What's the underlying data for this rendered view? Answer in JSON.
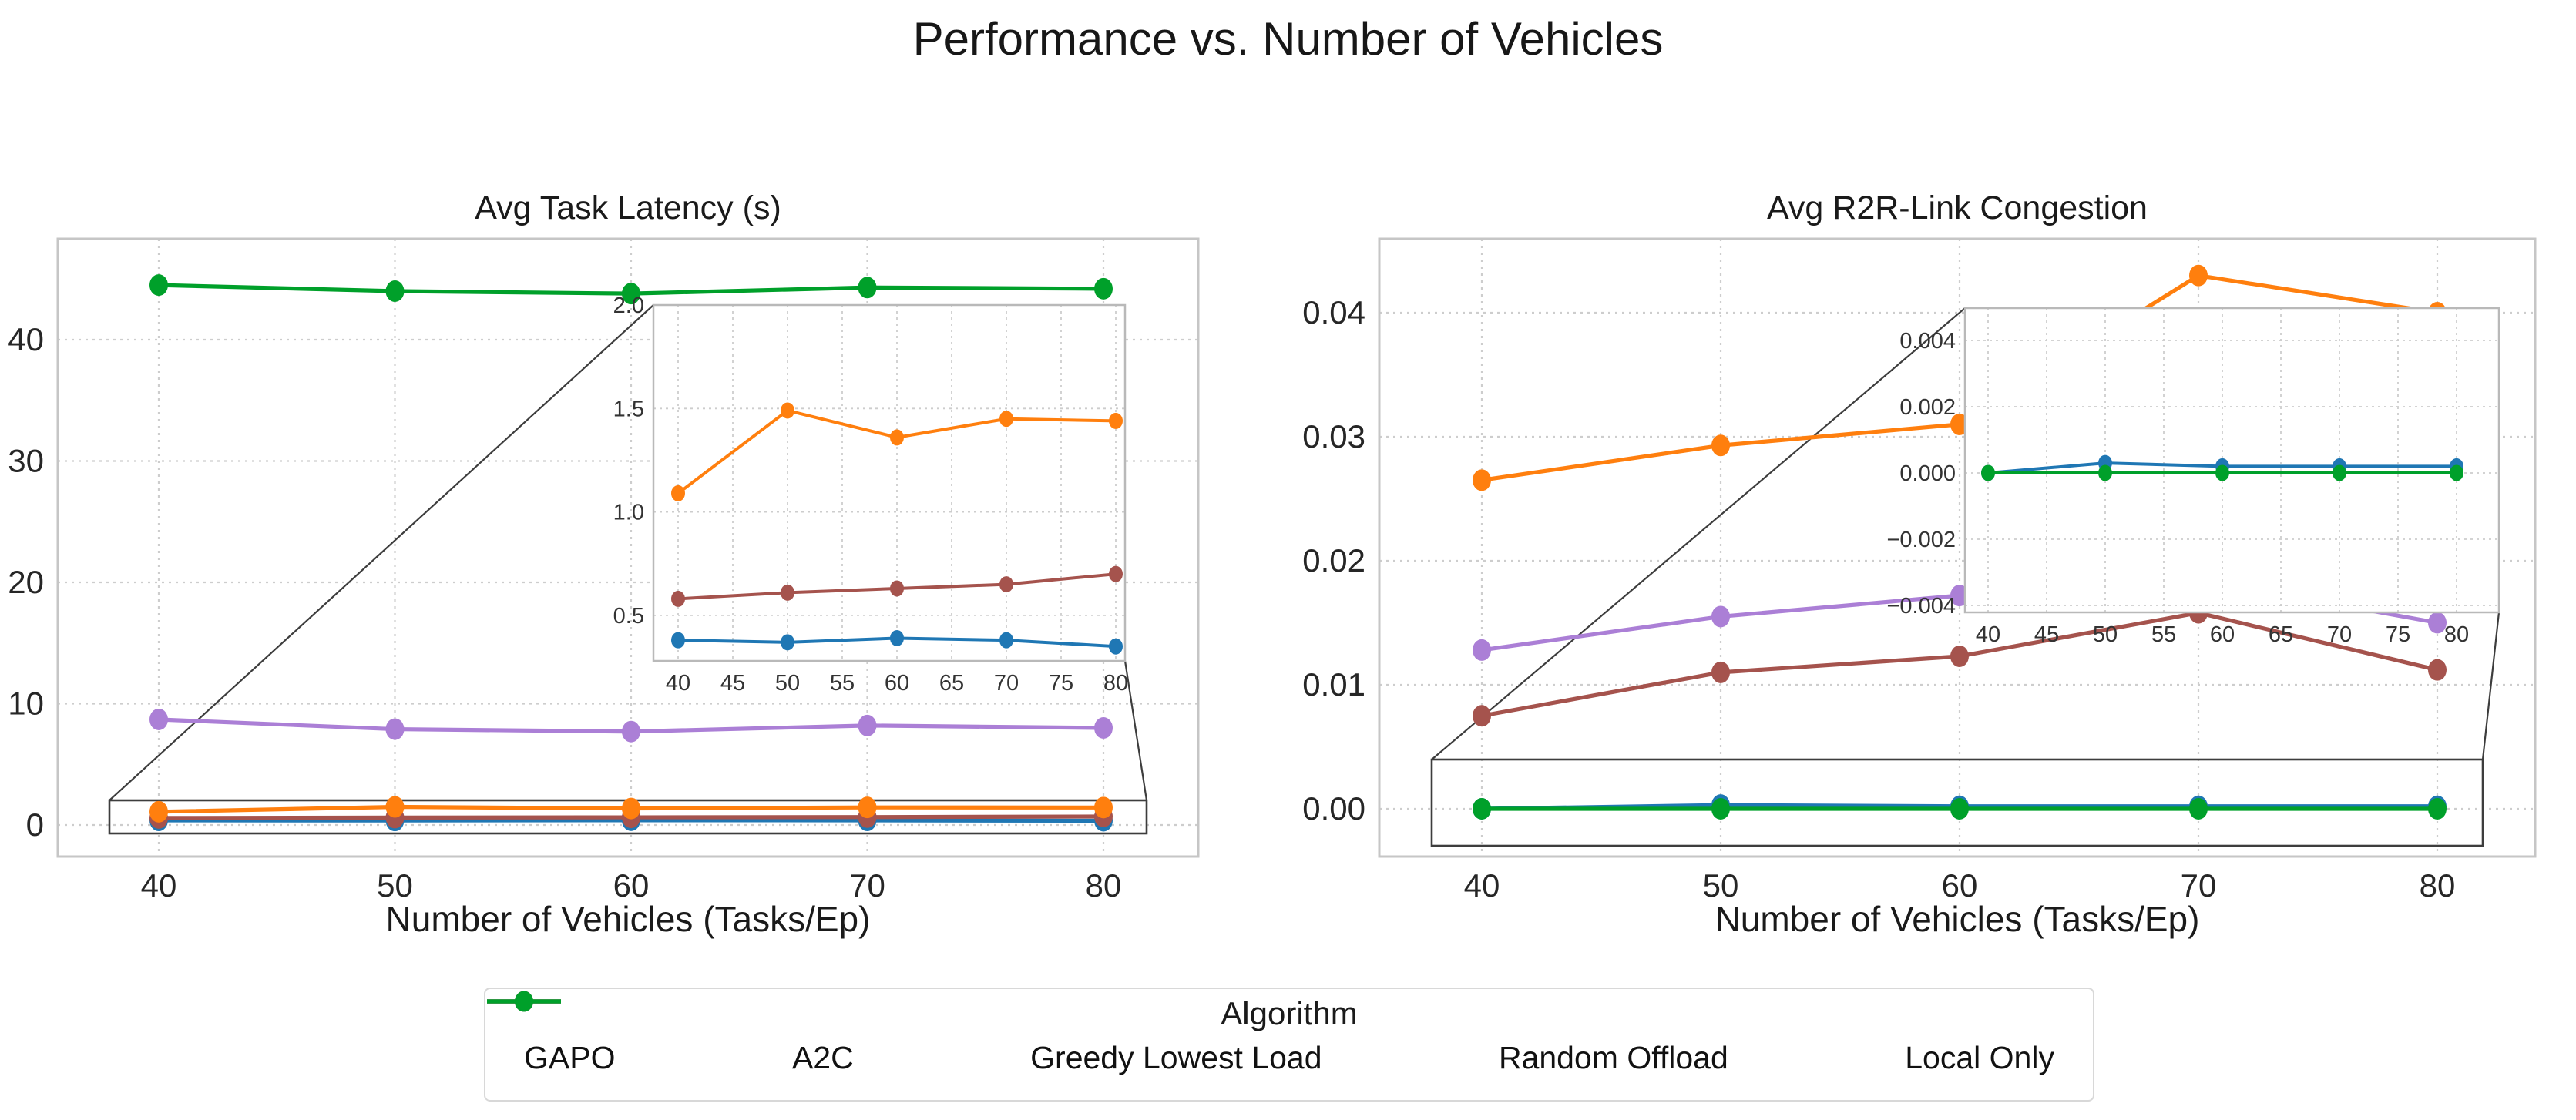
{
  "figure": {
    "suptitle": "Performance vs. Number of Vehicles"
  },
  "chart_data": [
    {
      "type": "line",
      "title": "Avg Task Latency (s)",
      "xlabel": "Number of Vehicles (Tasks/Ep)",
      "x": [
        40,
        50,
        60,
        70,
        80
      ],
      "xlim": [
        35.7,
        84.1
      ],
      "ylim": [
        -2.2,
        48.3
      ],
      "grid": true,
      "xticks": {
        "values": [
          40,
          50,
          60,
          70,
          80
        ],
        "labels": [
          "40",
          "50",
          "60",
          "70",
          "80"
        ]
      },
      "yticks": {
        "values": [
          0,
          10,
          20,
          30,
          40
        ],
        "labels": [
          "0",
          "10",
          "20",
          "30",
          "40"
        ]
      },
      "series": [
        {
          "name": "GAPO",
          "color": "#1f77b4",
          "values": [
            0.38,
            0.37,
            0.39,
            0.38,
            0.35
          ]
        },
        {
          "name": "A2C",
          "color": "#a5534d",
          "values": [
            0.58,
            0.61,
            0.63,
            0.65,
            0.7
          ]
        },
        {
          "name": "Greedy Lowest Load",
          "color": "#ff7f0e",
          "values": [
            1.09,
            1.49,
            1.36,
            1.45,
            1.44
          ]
        },
        {
          "name": "Random Offload",
          "color": "#ab7fd6",
          "values": [
            8.7,
            7.9,
            7.7,
            8.2,
            8.0
          ]
        },
        {
          "name": "Local Only",
          "color": "#00a02a",
          "values": [
            44.5,
            44.0,
            43.8,
            44.3,
            44.2
          ]
        }
      ],
      "zoom_region": {
        "x": [
          37.9,
          81.9
        ],
        "y": [
          -0.6,
          2.0
        ]
      },
      "inset": {
        "xticks": {
          "values": [
            40,
            45,
            50,
            55,
            60,
            65,
            70,
            75,
            80
          ],
          "labels": [
            "40",
            "45",
            "50",
            "55",
            "60",
            "65",
            "70",
            "75",
            "80"
          ]
        },
        "yticks": {
          "values": [
            0.5,
            1.0,
            1.5,
            2.0
          ],
          "labels": [
            "0.5",
            "1.0",
            "1.5",
            "2.0"
          ]
        },
        "ylim": [
          0.28,
          2.0
        ],
        "series_shown": [
          "GAPO",
          "A2C",
          "Greedy Lowest Load"
        ]
      }
    },
    {
      "type": "line",
      "title": "Avg R2R-Link Congestion",
      "xlabel": "Number of Vehicles (Tasks/Ep)",
      "x": [
        40,
        50,
        60,
        70,
        80
      ],
      "xlim": [
        35.7,
        84.1
      ],
      "ylim": [
        -0.0039,
        0.046
      ],
      "grid": true,
      "xticks": {
        "values": [
          40,
          50,
          60,
          70,
          80
        ],
        "labels": [
          "40",
          "50",
          "60",
          "70",
          "80"
        ]
      },
      "yticks": {
        "values": [
          0.0,
          0.01,
          0.02,
          0.03,
          0.04
        ],
        "labels": [
          "0.00",
          "0.01",
          "0.02",
          "0.03",
          "0.04"
        ]
      },
      "series": [
        {
          "name": "GAPO",
          "color": "#1f77b4",
          "values": [
            0.0,
            0.0003,
            0.0002,
            0.0002,
            0.0002
          ]
        },
        {
          "name": "A2C",
          "color": "#a5534d",
          "values": [
            0.0075,
            0.011,
            0.0123,
            0.0158,
            0.0112
          ]
        },
        {
          "name": "Greedy Lowest Load",
          "color": "#ff7f0e",
          "values": [
            0.0265,
            0.0293,
            0.031,
            0.043,
            0.04
          ]
        },
        {
          "name": "Random Offload",
          "color": "#ab7fd6",
          "values": [
            0.0128,
            0.0155,
            0.0172,
            0.0185,
            0.015
          ]
        },
        {
          "name": "Local Only",
          "color": "#00a02a",
          "values": [
            0.0,
            0.0,
            0.0,
            0.0,
            0.0
          ]
        }
      ],
      "zoom_region": {
        "x": [
          37.9,
          81.9
        ],
        "y": [
          -0.003,
          0.004
        ]
      },
      "inset": {
        "xticks": {
          "values": [
            40,
            45,
            50,
            55,
            60,
            65,
            70,
            75,
            80
          ],
          "labels": [
            "40",
            "45",
            "50",
            "55",
            "60",
            "65",
            "70",
            "75",
            "80"
          ]
        },
        "yticks": {
          "values": [
            0.004,
            0.002,
            0.0,
            -0.002,
            -0.004
          ],
          "labels": [
            "0.004",
            "0.002",
            "0.000",
            "−0.002",
            "−0.004"
          ]
        },
        "ylim": [
          -0.0047,
          0.005
        ],
        "series_shown": [
          "GAPO",
          "Local Only"
        ]
      }
    }
  ],
  "legend": {
    "title": "Algorithm",
    "entries": [
      {
        "label": "GAPO",
        "color": "#1f77b4"
      },
      {
        "label": "A2C",
        "color": "#a5534d"
      },
      {
        "label": "Greedy Lowest Load",
        "color": "#ff7f0e"
      },
      {
        "label": "Random Offload",
        "color": "#ab7fd6"
      },
      {
        "label": "Local Only",
        "color": "#00a02a"
      }
    ]
  },
  "colors": {
    "grid": "#cdcdcd",
    "spine": "#c6c6c6",
    "inset_spine": "#b9b9b9",
    "zoom_box": "#3d3d3d",
    "text": "#262626"
  }
}
